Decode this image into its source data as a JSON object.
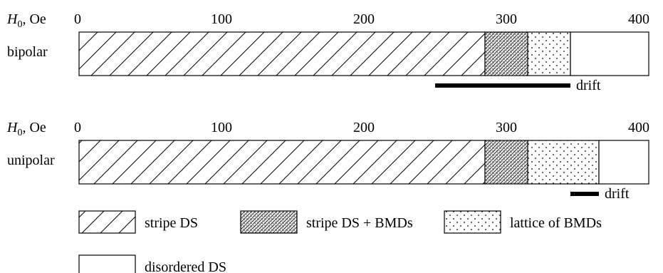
{
  "chart_data": {
    "type": "bar",
    "orientation": "horizontal-stacked",
    "x_range": [
      0,
      400
    ],
    "x_ticks": [
      "0",
      "100",
      "200",
      "300",
      "400"
    ],
    "axis_label": {
      "symbol": "H",
      "subscript": "0",
      "unit": ", Oe"
    },
    "rows": [
      {
        "label": "bipolar",
        "segments": [
          {
            "category": "stripe DS",
            "start": 0,
            "end": 285
          },
          {
            "category": "stripe DS + BMDs",
            "start": 285,
            "end": 315
          },
          {
            "category": "lattice of BMDs",
            "start": 315,
            "end": 345
          },
          {
            "category": "disordered DS",
            "start": 345,
            "end": 400
          }
        ],
        "drift": {
          "label": "drift",
          "start": 250,
          "end": 345
        }
      },
      {
        "label": "unipolar",
        "segments": [
          {
            "category": "stripe DS",
            "start": 0,
            "end": 285
          },
          {
            "category": "stripe DS + BMDs",
            "start": 285,
            "end": 315
          },
          {
            "category": "lattice of BMDs",
            "start": 315,
            "end": 365
          },
          {
            "category": "disordered DS",
            "start": 365,
            "end": 400
          }
        ],
        "drift": {
          "label": "drift",
          "start": 345,
          "end": 365
        }
      }
    ],
    "legend": [
      {
        "label": "stripe DS",
        "pattern": "coarse-hatch"
      },
      {
        "label": "stripe DS + BMDs",
        "pattern": "dense-hatch"
      },
      {
        "label": "lattice of BMDs",
        "pattern": "dots"
      },
      {
        "label": "disordered DS",
        "pattern": "blank"
      }
    ]
  }
}
